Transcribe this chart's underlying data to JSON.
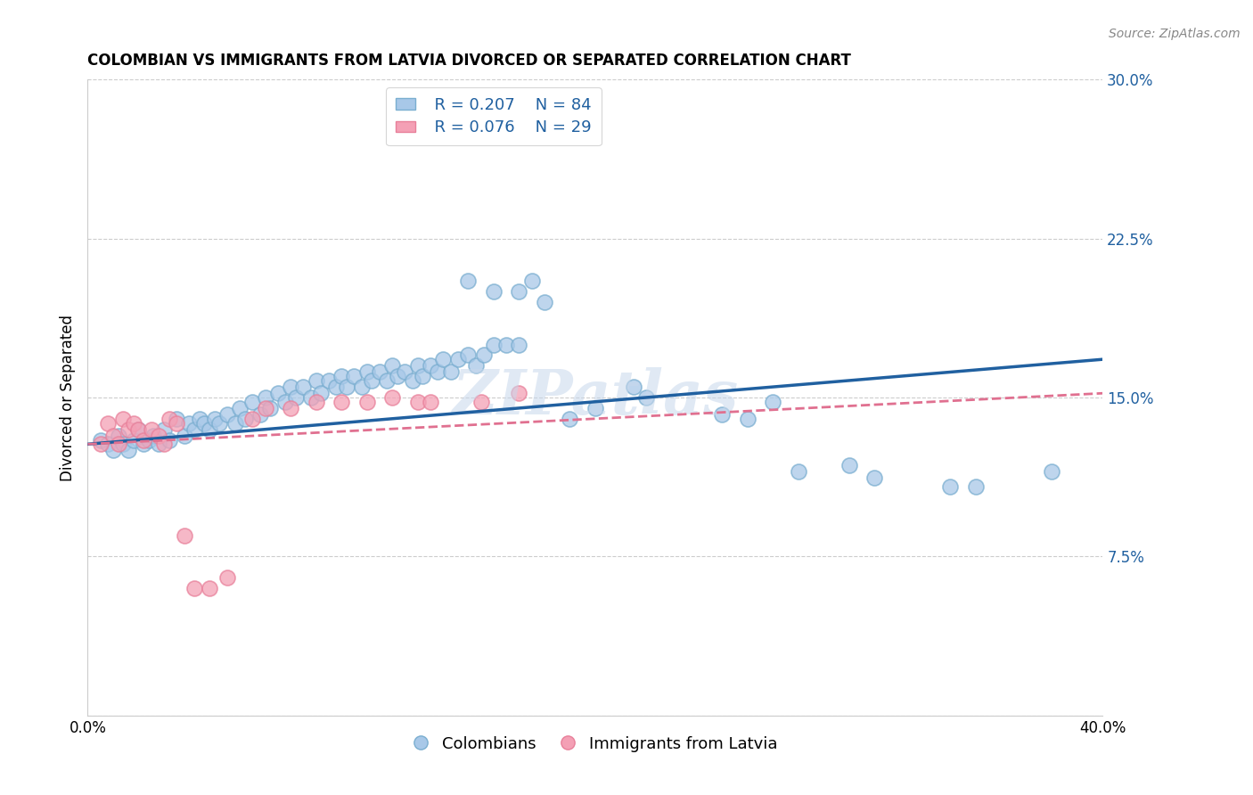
{
  "title": "COLOMBIAN VS IMMIGRANTS FROM LATVIA DIVORCED OR SEPARATED CORRELATION CHART",
  "source": "Source: ZipAtlas.com",
  "ylabel": "Divorced or Separated",
  "xlim": [
    0.0,
    0.4
  ],
  "ylim": [
    0.0,
    0.3
  ],
  "xticks": [
    0.0,
    0.05,
    0.1,
    0.15,
    0.2,
    0.25,
    0.3,
    0.35,
    0.4
  ],
  "yticks": [
    0.0,
    0.075,
    0.15,
    0.225,
    0.3
  ],
  "legend_r1": "R = 0.207",
  "legend_n1": "N = 84",
  "legend_r2": "R = 0.076",
  "legend_n2": "N = 29",
  "color_blue": "#a8c8e8",
  "color_pink": "#f4a0b5",
  "color_blue_edge": "#7aaed0",
  "color_pink_edge": "#e8809a",
  "color_blue_line": "#2060a0",
  "color_pink_line": "#e07090",
  "watermark": "ZIPatlas",
  "blue_scatter_x": [
    0.005,
    0.008,
    0.01,
    0.012,
    0.014,
    0.016,
    0.018,
    0.02,
    0.022,
    0.024,
    0.026,
    0.028,
    0.03,
    0.032,
    0.035,
    0.038,
    0.04,
    0.042,
    0.044,
    0.046,
    0.048,
    0.05,
    0.052,
    0.055,
    0.058,
    0.06,
    0.062,
    0.065,
    0.068,
    0.07,
    0.072,
    0.075,
    0.078,
    0.08,
    0.082,
    0.085,
    0.088,
    0.09,
    0.092,
    0.095,
    0.098,
    0.1,
    0.102,
    0.105,
    0.108,
    0.11,
    0.112,
    0.115,
    0.118,
    0.12,
    0.122,
    0.125,
    0.128,
    0.13,
    0.132,
    0.135,
    0.138,
    0.14,
    0.143,
    0.146,
    0.15,
    0.153,
    0.156,
    0.16,
    0.165,
    0.17,
    0.18,
    0.19,
    0.2,
    0.215,
    0.22,
    0.25,
    0.26,
    0.27,
    0.28,
    0.3,
    0.31,
    0.34,
    0.35,
    0.38,
    0.15,
    0.16,
    0.17,
    0.175
  ],
  "blue_scatter_y": [
    0.13,
    0.128,
    0.125,
    0.132,
    0.128,
    0.125,
    0.13,
    0.135,
    0.128,
    0.13,
    0.132,
    0.128,
    0.135,
    0.13,
    0.14,
    0.132,
    0.138,
    0.135,
    0.14,
    0.138,
    0.135,
    0.14,
    0.138,
    0.142,
    0.138,
    0.145,
    0.14,
    0.148,
    0.142,
    0.15,
    0.145,
    0.152,
    0.148,
    0.155,
    0.15,
    0.155,
    0.15,
    0.158,
    0.152,
    0.158,
    0.155,
    0.16,
    0.155,
    0.16,
    0.155,
    0.162,
    0.158,
    0.162,
    0.158,
    0.165,
    0.16,
    0.162,
    0.158,
    0.165,
    0.16,
    0.165,
    0.162,
    0.168,
    0.162,
    0.168,
    0.17,
    0.165,
    0.17,
    0.175,
    0.175,
    0.175,
    0.195,
    0.14,
    0.145,
    0.155,
    0.15,
    0.142,
    0.14,
    0.148,
    0.115,
    0.118,
    0.112,
    0.108,
    0.108,
    0.115,
    0.205,
    0.2,
    0.2,
    0.205
  ],
  "pink_scatter_x": [
    0.005,
    0.008,
    0.01,
    0.012,
    0.014,
    0.016,
    0.018,
    0.02,
    0.022,
    0.025,
    0.028,
    0.03,
    0.032,
    0.035,
    0.038,
    0.042,
    0.048,
    0.055,
    0.065,
    0.07,
    0.08,
    0.09,
    0.1,
    0.11,
    0.12,
    0.13,
    0.135,
    0.155,
    0.17
  ],
  "pink_scatter_y": [
    0.128,
    0.138,
    0.132,
    0.128,
    0.14,
    0.135,
    0.138,
    0.135,
    0.13,
    0.135,
    0.132,
    0.128,
    0.14,
    0.138,
    0.085,
    0.06,
    0.06,
    0.065,
    0.14,
    0.145,
    0.145,
    0.148,
    0.148,
    0.148,
    0.15,
    0.148,
    0.148,
    0.148,
    0.152
  ],
  "blue_line_x": [
    0.0,
    0.4
  ],
  "blue_line_y": [
    0.128,
    0.168
  ],
  "pink_line_x": [
    0.0,
    0.4
  ],
  "pink_line_y": [
    0.128,
    0.152
  ]
}
